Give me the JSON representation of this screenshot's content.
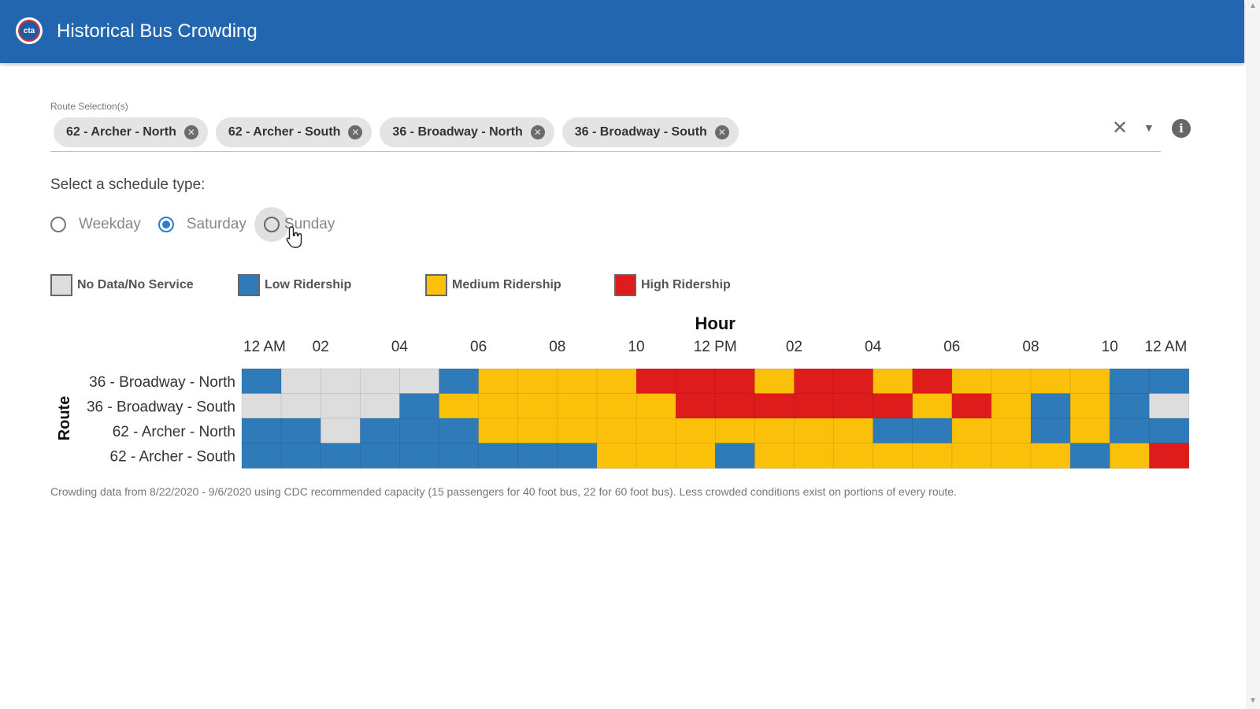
{
  "header": {
    "logo_text": "cta",
    "title": "Historical Bus Crowding"
  },
  "route_selection": {
    "label": "Route Selection(s)",
    "chips": [
      {
        "label": "62 - Archer - North"
      },
      {
        "label": "62 - Archer - South"
      },
      {
        "label": "36 - Broadway - North"
      },
      {
        "label": "36 - Broadway - South"
      }
    ],
    "clear_icon": "close-icon",
    "dropdown_icon": "chevron-down-icon",
    "info_icon": "info-icon"
  },
  "schedule": {
    "label": "Select a schedule type:",
    "options": [
      {
        "label": "Weekday",
        "checked": false
      },
      {
        "label": "Saturday",
        "checked": true
      },
      {
        "label": "Sunday",
        "checked": false
      }
    ]
  },
  "legend": [
    {
      "label": "No Data/No Service",
      "color": "#dddddd"
    },
    {
      "label": "Low Ridership",
      "color": "#2f7ab9"
    },
    {
      "label": "Medium Ridership",
      "color": "#fbc10a"
    },
    {
      "label": "High Ridership",
      "color": "#de1c1c"
    }
  ],
  "chart_data": {
    "type": "heatmap",
    "xlabel": "Hour",
    "ylabel": "Route",
    "x_tick_labels": [
      "12 AM",
      "02",
      "04",
      "06",
      "08",
      "10",
      "12 PM",
      "02",
      "04",
      "06",
      "08",
      "10",
      "12 AM"
    ],
    "hours": 24,
    "rows": [
      "36 - Broadway - North",
      "36 - Broadway - South",
      "62 - Archer - North",
      "62 - Archer - South"
    ],
    "levels": [
      "No Data/No Service",
      "Low Ridership",
      "Medium Ridership",
      "High Ridership"
    ],
    "values": [
      [
        1,
        0,
        0,
        0,
        0,
        1,
        2,
        2,
        2,
        2,
        3,
        3,
        3,
        2,
        3,
        3,
        2,
        3,
        2,
        2,
        2,
        2,
        1,
        1
      ],
      [
        0,
        0,
        0,
        0,
        1,
        2,
        2,
        2,
        2,
        2,
        2,
        3,
        3,
        3,
        3,
        3,
        3,
        2,
        3,
        2,
        1,
        2,
        1,
        0
      ],
      [
        1,
        1,
        0,
        1,
        1,
        1,
        2,
        2,
        2,
        2,
        2,
        2,
        2,
        2,
        2,
        2,
        1,
        1,
        2,
        2,
        1,
        2,
        1,
        1
      ],
      [
        1,
        1,
        1,
        1,
        1,
        1,
        1,
        1,
        1,
        2,
        2,
        2,
        1,
        2,
        2,
        2,
        2,
        2,
        2,
        2,
        2,
        1,
        2,
        3
      ]
    ]
  },
  "footnote": "Crowding data from 8/22/2020 - 9/6/2020 using CDC recommended capacity (15 passengers for 40 foot bus, 22 for 60 foot bus). Less crowded conditions exist on portions of every route."
}
